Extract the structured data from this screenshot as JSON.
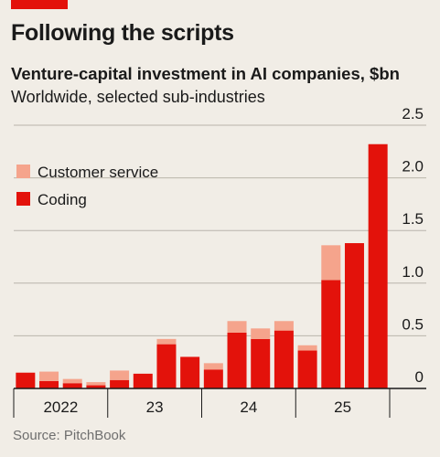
{
  "header": {
    "title": "Following the scripts",
    "subtitle": "Venture-capital investment in AI companies, $bn",
    "subsubtitle": "Worldwide, selected sub-industries"
  },
  "source": "Source: PitchBook",
  "colors": {
    "coding": "#e3120b",
    "customer_service": "#f5a48c",
    "accent": "#e3120b",
    "background": "#f1ede6"
  },
  "chart_data": {
    "type": "bar",
    "stacked": true,
    "title": "Following the scripts",
    "subtitle": "Venture-capital investment in AI companies, $bn",
    "note": "Worldwide, selected sub-industries",
    "categories": [
      "2022 Q1",
      "2022 Q2",
      "2022 Q3",
      "2022 Q4",
      "2023 Q1",
      "2023 Q2",
      "2023 Q3",
      "2023 Q4",
      "2024 Q1",
      "2024 Q2",
      "2024 Q3",
      "2024 Q4",
      "2025 Q1",
      "2025 Q2",
      "2025 Q3",
      "2025 Q4"
    ],
    "x_tick_labels": [
      "2022",
      "23",
      "24",
      "25"
    ],
    "series": [
      {
        "name": "Coding",
        "values": [
          0.15,
          0.07,
          0.05,
          0.03,
          0.08,
          0.14,
          0.42,
          0.3,
          0.18,
          0.53,
          0.47,
          0.55,
          0.36,
          1.03,
          1.38,
          2.32
        ]
      },
      {
        "name": "Customer service",
        "values": [
          0.0,
          0.09,
          0.04,
          0.03,
          0.09,
          0.0,
          0.05,
          0.0,
          0.06,
          0.11,
          0.1,
          0.09,
          0.05,
          0.33,
          0.0,
          0.0
        ]
      }
    ],
    "ylim": [
      0,
      2.5
    ],
    "y_ticks": [
      0,
      0.5,
      1.0,
      1.5,
      2.0,
      2.5
    ],
    "y_tick_labels": [
      "0",
      "0.5",
      "1.0",
      "1.5",
      "2.0",
      "2.5"
    ],
    "y_axis_position": "right",
    "grid": true,
    "legend_position": "top-left",
    "xlabel": "",
    "ylabel": ""
  }
}
